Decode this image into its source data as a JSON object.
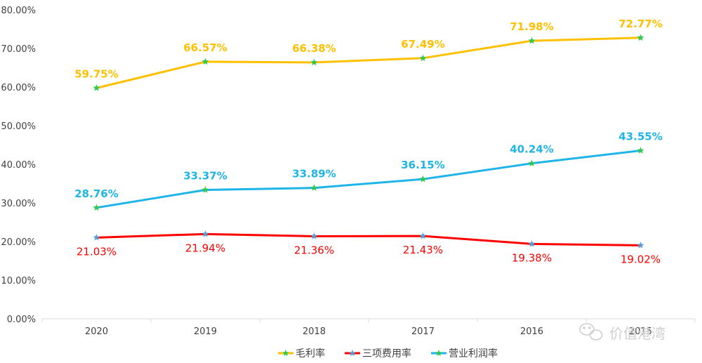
{
  "chart_data": {
    "type": "line",
    "categories": [
      "2020",
      "2019",
      "2018",
      "2017",
      "2016",
      "2015"
    ],
    "yticks": [
      "0.00%",
      "10.00%",
      "20.00%",
      "30.00%",
      "40.00%",
      "50.00%",
      "60.00%",
      "70.00%",
      "80.00%"
    ],
    "ylim": [
      0,
      80
    ],
    "grid": false,
    "legend_position": "bottom",
    "series": [
      {
        "name": "毛利率",
        "color": "#FFC000",
        "marker_color": "#2FC850",
        "values": [
          59.75,
          66.57,
          66.38,
          67.49,
          71.98,
          72.77
        ],
        "labels": [
          "59.75%",
          "66.57%",
          "66.38%",
          "67.49%",
          "71.98%",
          "72.77%"
        ],
        "label_position": "above",
        "label_bold": true
      },
      {
        "name": "三项费用率",
        "color": "#FF0000",
        "marker_color": "#5B9BD5",
        "values": [
          21.03,
          21.94,
          21.36,
          21.43,
          19.38,
          19.02
        ],
        "labels": [
          "21.03%",
          "21.94%",
          "21.36%",
          "21.43%",
          "19.38%",
          "19.02%"
        ],
        "label_position": "below",
        "label_bold": false
      },
      {
        "name": "营业利润率",
        "color": "#1EB4E8",
        "marker_color": "#2FC850",
        "values": [
          28.76,
          33.37,
          33.89,
          36.15,
          40.24,
          43.55
        ],
        "labels": [
          "28.76%",
          "33.37%",
          "33.89%",
          "36.15%",
          "40.24%",
          "43.55%"
        ],
        "label_position": "above",
        "label_bold": true
      }
    ]
  },
  "watermark": {
    "text": "价值港湾",
    "icon": "wechat-icon"
  }
}
